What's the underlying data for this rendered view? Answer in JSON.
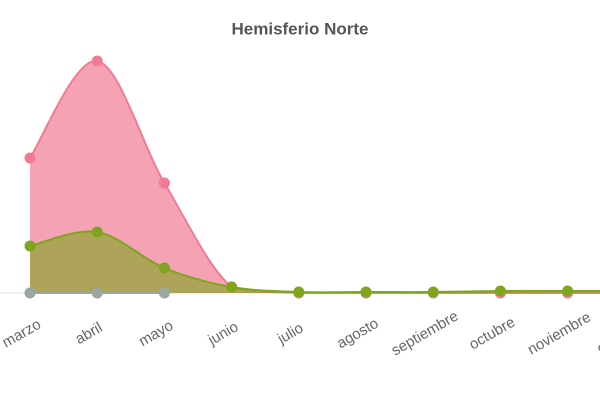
{
  "chart_data": {
    "type": "area",
    "title": "Hemisferio Norte",
    "categories": [
      "marzo",
      "abril",
      "mayo",
      "junio",
      "julio",
      "agosto",
      "septiembre",
      "octubre",
      "noviembre",
      "diciembre"
    ],
    "series": [
      {
        "color": "#f27a95",
        "values": [
          135,
          232,
          110,
          6,
          0,
          0,
          0,
          0,
          0,
          0
        ]
      },
      {
        "color": "#7ea51d",
        "values": [
          47,
          61,
          25,
          6,
          1,
          1,
          1,
          2,
          2,
          2
        ]
      },
      {
        "color": "#9aa8a0",
        "values": [
          0,
          0,
          0,
          null,
          null,
          null,
          null,
          null,
          null,
          null
        ]
      }
    ],
    "ylim": [
      0,
      240
    ]
  }
}
